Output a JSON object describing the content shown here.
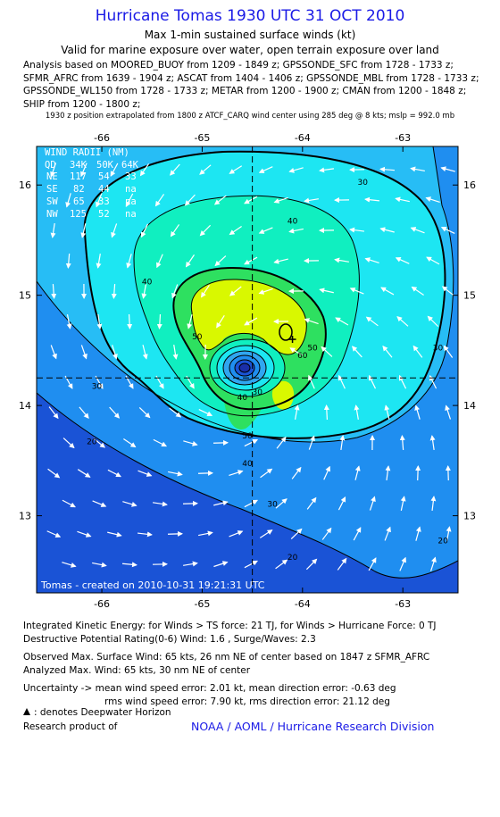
{
  "header": {
    "title": "Hurricane Tomas 1930 UTC 31 OCT 2010",
    "subtitle": "Max 1-min sustained surface winds (kt)",
    "validity": "Valid for marine exposure over water, open terrain exposure over land",
    "analysis_lines": [
      "Analysis based on MOORED_BUOY from 1209 - 1849 z; GPSSONDE_SFC from 1728 - 1733 z;",
      "SFMR_AFRC from 1639 - 1904 z; ASCAT from 1404 - 1406 z; GPSSONDE_MBL from 1728 - 1733 z;",
      "GPSSONDE_WL150 from 1728 - 1733 z; METAR from 1200 - 1900 z; CMAN from 1200 - 1848 z;",
      "SHIP from 1200 - 1800 z;"
    ],
    "position_note": "1930 z position extrapolated from 1800 z ATCF_CARQ wind center using 285 deg @ 8 kts; mslp = 992.0 mb"
  },
  "wind_radii_table": {
    "title": "WIND RADII (NM)",
    "columns": [
      "QD",
      "34K",
      "50K",
      "64K"
    ],
    "rows": [
      [
        "NE",
        "117",
        "54",
        "33"
      ],
      [
        "SE",
        "82",
        "44",
        "na"
      ],
      [
        "SW",
        "65",
        "33",
        "na"
      ],
      [
        "NW",
        "125",
        "52",
        "na"
      ]
    ]
  },
  "plot_credit": "Tomas  -  created on  2010-10-31  19:21:31  UTC",
  "chart_data": {
    "type": "contour",
    "variable": "Max 1-min sustained surface winds (kt)",
    "x_ticks": [
      -66,
      -65,
      -64,
      -63
    ],
    "x_tick_labels": [
      "-66",
      "-65",
      "-64",
      "-63"
    ],
    "y_ticks": [
      13,
      14,
      15,
      16
    ],
    "y_tick_labels": [
      "13",
      "14",
      "15",
      "16"
    ],
    "xlim": [
      -66.65,
      -62.45
    ],
    "ylim": [
      12.3,
      16.35
    ],
    "center": {
      "lon": -64.5,
      "lat": 14.25
    },
    "max_wind_marker": {
      "lon": -64.1,
      "lat": 14.6
    },
    "contour_levels": [
      20,
      30,
      34,
      40,
      50,
      60
    ],
    "contour_labels": [
      {
        "text": "30",
        "lon": -63.4,
        "lat": 16.0
      },
      {
        "text": "40",
        "lon": -64.1,
        "lat": 15.65
      },
      {
        "text": "40",
        "lon": -65.55,
        "lat": 15.1
      },
      {
        "text": "30",
        "lon": -62.65,
        "lat": 14.5
      },
      {
        "text": "50",
        "lon": -63.9,
        "lat": 14.5
      },
      {
        "text": "60",
        "lon": -64.0,
        "lat": 14.43
      },
      {
        "text": "50",
        "lon": -65.05,
        "lat": 14.6
      },
      {
        "text": "30",
        "lon": -66.05,
        "lat": 14.15
      },
      {
        "text": "30",
        "lon": -64.45,
        "lat": 14.1
      },
      {
        "text": "40",
        "lon": -64.6,
        "lat": 14.05
      },
      {
        "text": "50",
        "lon": -64.55,
        "lat": 13.7
      },
      {
        "text": "40",
        "lon": -64.55,
        "lat": 13.45
      },
      {
        "text": "20",
        "lon": -66.1,
        "lat": 13.65
      },
      {
        "text": "30",
        "lon": -64.3,
        "lat": 13.08
      },
      {
        "text": "20",
        "lon": -64.1,
        "lat": 12.6
      },
      {
        "text": "20",
        "lon": -62.6,
        "lat": 12.75
      }
    ],
    "colors": {
      "lt20": "#1a53d6",
      "20_30": "#1f8ef0",
      "30_34": "#27bdf5",
      "34_40": "#1de6f2",
      "40_50": "#10efc0",
      "50_60": "#2ee060",
      "60_plus": "#d9f800",
      "eye_ring": "#30a6f0",
      "grid": "#000000"
    }
  },
  "footer": {
    "ike": "Integrated Kinetic Energy:  for Winds > TS force: 21 TJ,  for Winds > Hurricane Force: 0 TJ",
    "dpr": "Destructive Potential Rating(0-6)   Wind: 1.6 , Surge/Waves: 2.3",
    "obs_max": "Observed Max. Surface Wind: 65 kts, 26 nm NE of center based on 1847 z SFMR_AFRC",
    "analyzed_max": "Analyzed Max. Wind: 65 kts, 30 nm NE of center",
    "uncertainty_1": "Uncertainty -> mean wind speed error: 2.01 kt,   mean direction error:  -0.63 deg",
    "uncertainty_2": "rms wind speed error: 7.90 kt,   rms direction error: 21.12 deg",
    "deepwater": ": denotes Deepwater Horizon",
    "research": "Research product of",
    "noaa": "NOAA / AOML / Hurricane Research Division"
  }
}
